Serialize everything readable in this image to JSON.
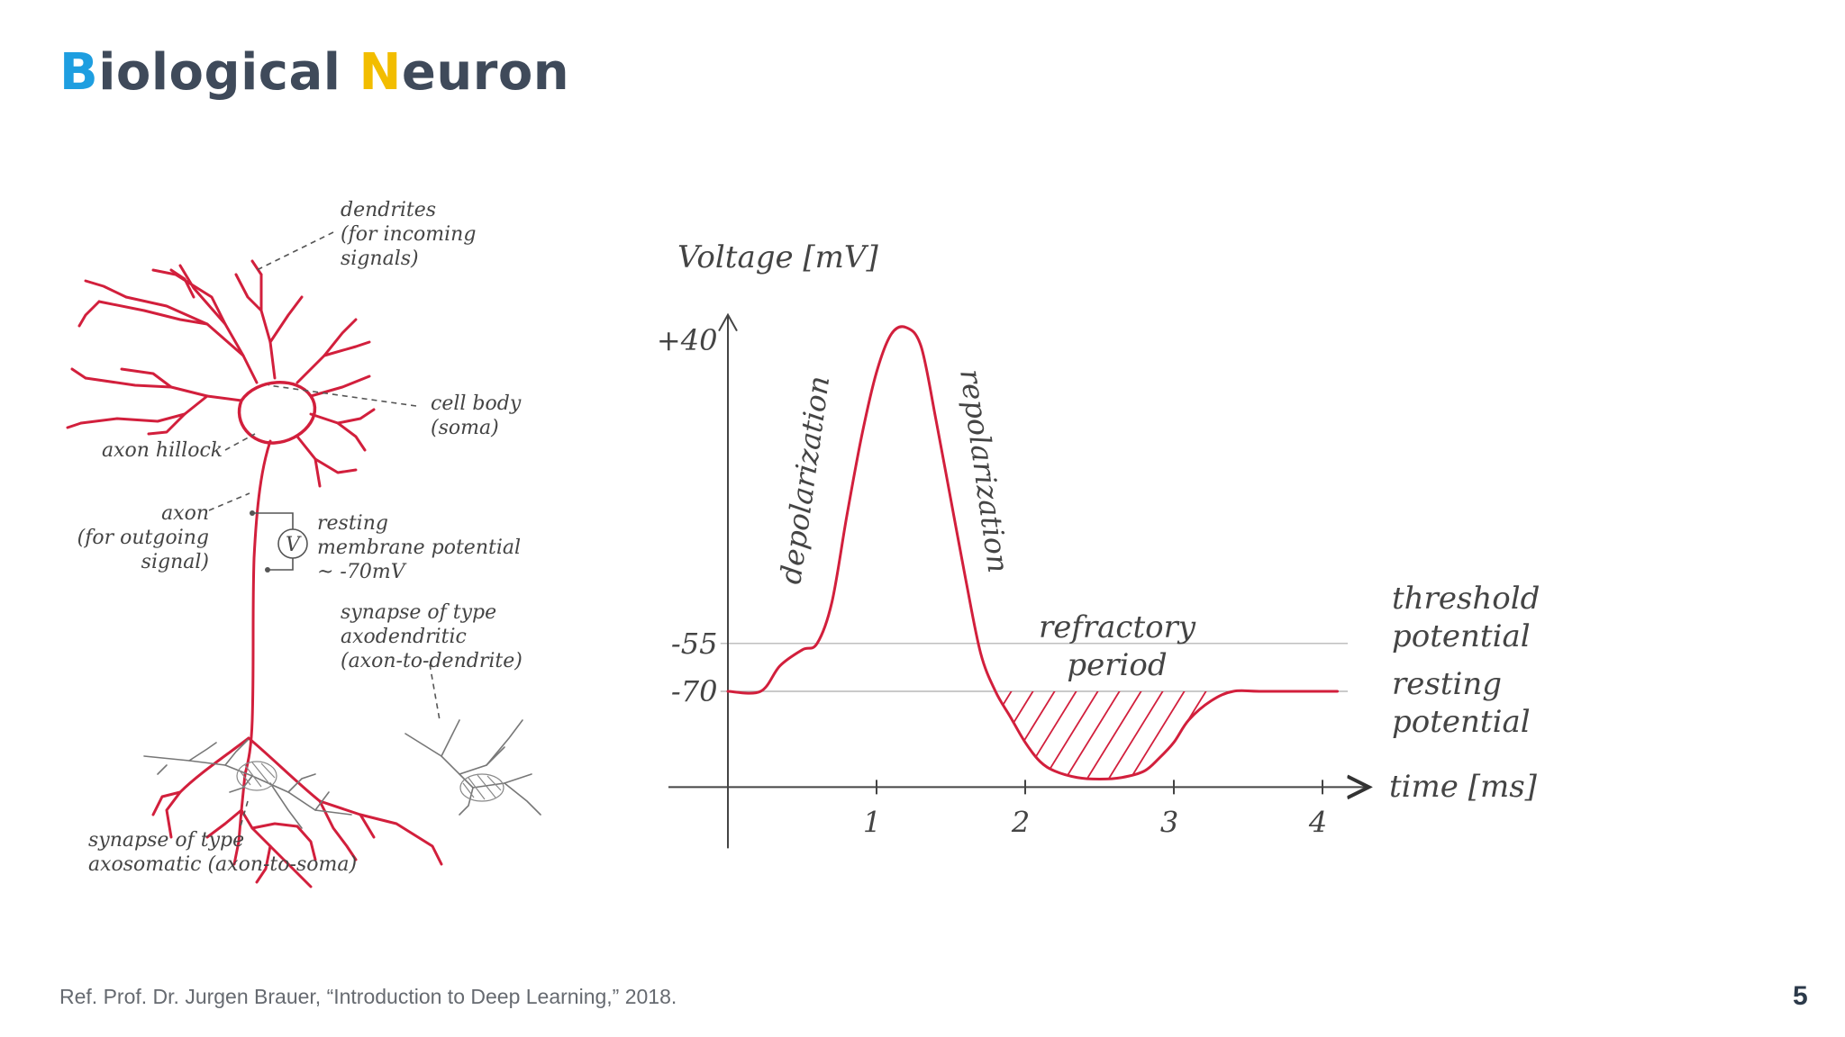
{
  "slide": {
    "title_first_letter": "B",
    "title_word1_rest": "iological ",
    "title_second_letter": "N",
    "title_word2_rest": "euron",
    "footer_ref": "Ref. Prof. Dr. Jurgen Brauer, “Introduction to Deep Learning,” 2018.",
    "page_number": "5"
  },
  "colors": {
    "accent_blue": "#1e9ee0",
    "accent_yellow": "#f2bd00",
    "title_gray": "#3f4a5a",
    "drawing_red": "#d21f3c"
  },
  "neuron": {
    "dendrites": [
      "dendrites",
      "(for incoming",
      "signals)"
    ],
    "cell_body": [
      "cell body",
      "(soma)"
    ],
    "axon_hillock": "axon hillock",
    "axon": [
      "axon",
      "(for outgoing",
      "signal)"
    ],
    "voltmeter": "V",
    "resting": [
      "resting",
      "membrane potential",
      "~ -70mV"
    ],
    "synapse_axodendritic": [
      "synapse of type",
      "axodendritic",
      "(axon-to-dendrite)"
    ],
    "synapse_axosomatic": [
      "synapse of type",
      "axosomatic (axon-to-soma)"
    ]
  },
  "chart_data": {
    "type": "line",
    "ylabel": "Voltage [mV]",
    "xlabel": "time [ms]",
    "x_ticks": [
      "1",
      "2",
      "3",
      "4"
    ],
    "y_ticks": [
      "+40",
      "-55",
      "-70"
    ],
    "xlim": [
      0,
      4.3
    ],
    "ylim": [
      -100,
      48
    ],
    "series": [
      {
        "x": [
          0,
          0.22,
          0.35,
          0.5,
          0.6,
          0.7,
          0.8,
          0.9,
          1.0,
          1.1,
          1.2,
          1.3,
          1.4,
          1.5,
          1.6,
          1.7,
          1.8,
          1.9,
          2.0,
          2.1,
          2.2,
          2.35,
          2.5,
          2.65,
          2.8,
          2.9,
          3.0,
          3.1,
          3.25,
          3.4,
          3.6,
          4.1
        ],
        "y": [
          -70,
          -70,
          -62,
          -57,
          -55,
          -42,
          -15,
          10,
          30,
          42,
          44,
          38,
          15,
          -10,
          -35,
          -58,
          -70,
          -78,
          -86,
          -92,
          -95,
          -97,
          -97.5,
          -97,
          -95,
          -91,
          -86,
          -79,
          -73,
          -70,
          -70,
          -70
        ]
      }
    ],
    "reference_lines": [
      {
        "y": -55,
        "label": [
          "threshold",
          "potential"
        ]
      },
      {
        "y": -70,
        "label": [
          "resting",
          "potential"
        ]
      }
    ],
    "annotations": {
      "depolarization": "depolarization",
      "repolarization": "repolarization",
      "refractory": [
        "refractory",
        "period"
      ]
    }
  }
}
